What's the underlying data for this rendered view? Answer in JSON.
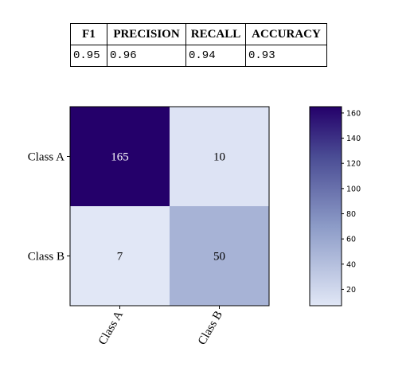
{
  "metrics_table": {
    "headers": [
      "F1",
      "PRECISION",
      "RECALL",
      "ACCURACY"
    ],
    "values": [
      "0.95",
      "0.96",
      "0.94",
      "0.93"
    ]
  },
  "chart_data": {
    "type": "heatmap",
    "title": "",
    "xlabel": "",
    "ylabel": "",
    "x_categories": [
      "Class A",
      "Class B"
    ],
    "y_categories": [
      "Class A",
      "Class B"
    ],
    "values": [
      [
        165,
        10
      ],
      [
        7,
        50
      ]
    ],
    "colormap": "Purples/blue-purple",
    "color_low": "#e1e7f6",
    "color_high": "#24006a",
    "colorbar": {
      "vmin": 7,
      "vmax": 165,
      "ticks": [
        20,
        40,
        60,
        80,
        100,
        120,
        140,
        160
      ],
      "tick_labels": [
        "20",
        "40",
        "60",
        "80",
        "100",
        "120",
        "140",
        "160"
      ]
    },
    "cell_label_colors": {
      "dark": "#ffffff",
      "light": "#000000"
    },
    "grid": false
  }
}
